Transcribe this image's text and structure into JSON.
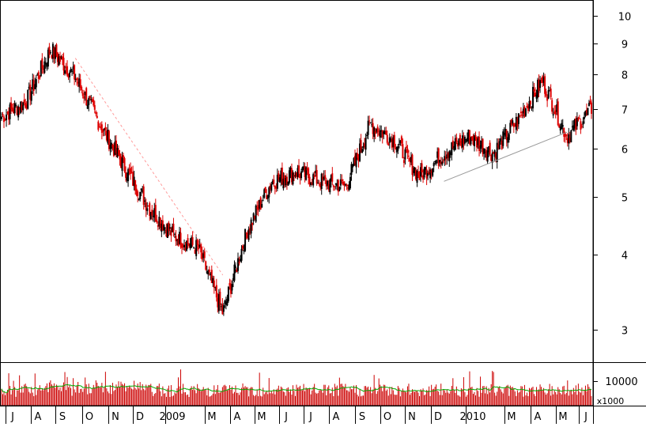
{
  "chart_data": [
    {
      "type": "candlestick",
      "title": "",
      "xlabel": "",
      "ylabel": "",
      "log_scale": true,
      "ylim": [
        2.75,
        10.8
      ],
      "y_ticks": [
        3,
        4,
        5,
        6,
        7,
        8,
        9,
        10
      ],
      "grid": false,
      "x_month_labels": [
        "J",
        "A",
        "S",
        "O",
        "N",
        "D",
        "2009",
        "M",
        "A",
        "M",
        "J",
        "J",
        "A",
        "S",
        "O",
        "N",
        "D",
        "2010",
        "M",
        "A",
        "M",
        "J"
      ],
      "key_points": [
        {
          "month": "Jun 2008",
          "close": 6.8
        },
        {
          "month": "Jul 2008",
          "close": 7.2
        },
        {
          "month": "Aug 2008",
          "close": 8.8
        },
        {
          "month": "Sep 2008",
          "close": 7.9
        },
        {
          "month": "Oct 2008",
          "close": 6.6
        },
        {
          "month": "Nov 2008",
          "close": 5.6
        },
        {
          "month": "Dec 2008",
          "close": 4.8
        },
        {
          "month": "Jan 2009",
          "close": 4.3
        },
        {
          "month": "Feb 2009",
          "close": 4.1
        },
        {
          "month": "Mar 2009",
          "close": 3.2
        },
        {
          "month": "Apr 2009",
          "close": 4.4
        },
        {
          "month": "May 2009",
          "close": 5.3
        },
        {
          "month": "Jun 2009",
          "close": 5.5
        },
        {
          "month": "Jul 2009",
          "close": 5.3
        },
        {
          "month": "Aug 2009",
          "close": 5.2
        },
        {
          "month": "Sep 2009",
          "close": 6.6
        },
        {
          "month": "Oct 2009",
          "close": 6.2
        },
        {
          "month": "Nov 2009",
          "close": 5.4
        },
        {
          "month": "Dec 2009",
          "close": 5.9
        },
        {
          "month": "Jan 2010",
          "close": 6.3
        },
        {
          "month": "Feb 2010",
          "close": 5.9
        },
        {
          "month": "Mar 2010",
          "close": 6.7
        },
        {
          "month": "Apr 2010",
          "close": 7.8
        },
        {
          "month": "May 2010",
          "close": 6.3
        },
        {
          "month": "Jun 2010",
          "close": 7.0
        }
      ],
      "trendlines": [
        {
          "from": {
            "month": "Sep 2008",
            "value": 8.5
          },
          "to": {
            "month": "Mar 2009",
            "value": 3.7
          },
          "style": "dashed"
        },
        {
          "from": {
            "month": "Dec 2009",
            "value": 5.3
          },
          "to": {
            "month": "May 2010",
            "value": 6.4
          },
          "style": "solid"
        }
      ],
      "colors": {
        "up": "#000000",
        "down": "#dd0000",
        "trendline_dashed": "#ff9999",
        "trendline_solid": "#999999"
      }
    },
    {
      "type": "bar",
      "title": "",
      "ylabel": "",
      "y_ticks": [
        10000
      ],
      "unit_label": "x1000",
      "moving_average": true,
      "colors": {
        "bars": "#cc0000",
        "moving_average": "#00aa00"
      }
    }
  ]
}
